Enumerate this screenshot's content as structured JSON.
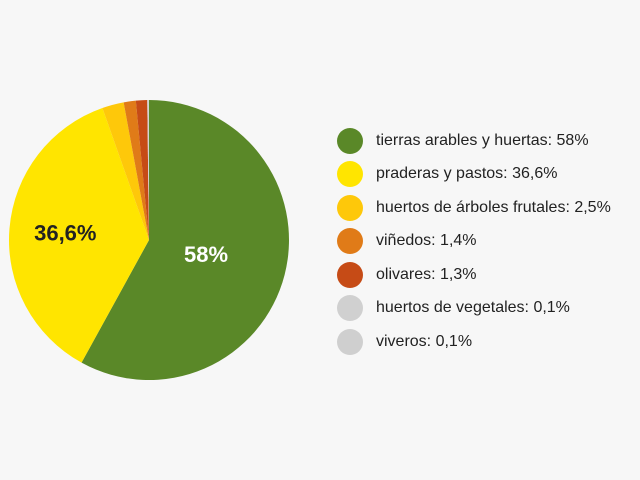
{
  "chart_data": {
    "type": "pie",
    "categories": [
      "tierras arables y huertas",
      "praderas y pastos",
      "huertos de árboles frutales",
      "viñedos",
      "olivares",
      "huertos de vegetales",
      "viveros"
    ],
    "values": [
      58,
      36.6,
      2.5,
      1.4,
      1.3,
      0.1,
      0.1
    ],
    "colors": [
      "#5a8828",
      "#ffe500",
      "#fec80a",
      "#e07b18",
      "#c64b16",
      "#d0d0d0",
      "#cfcfcf"
    ],
    "slice_labels": [
      "58%",
      "36,6%",
      "",
      "",
      "",
      "",
      ""
    ],
    "slice_label_colors": [
      "#ffffff",
      "#222222",
      "",
      "",
      "",
      "",
      ""
    ],
    "legend_entries": [
      "tierras arables y huertas: 58%",
      "praderas y pastos: 36,6%",
      "huertos de árboles frutales: 2,5%",
      "viñedos: 1,4%",
      "olivares: 1,3%",
      "huertos de vegetales: 0,1%",
      "viveros: 0,1%"
    ],
    "legend_placement": "right",
    "start": "top",
    "direction": "clockwise"
  }
}
